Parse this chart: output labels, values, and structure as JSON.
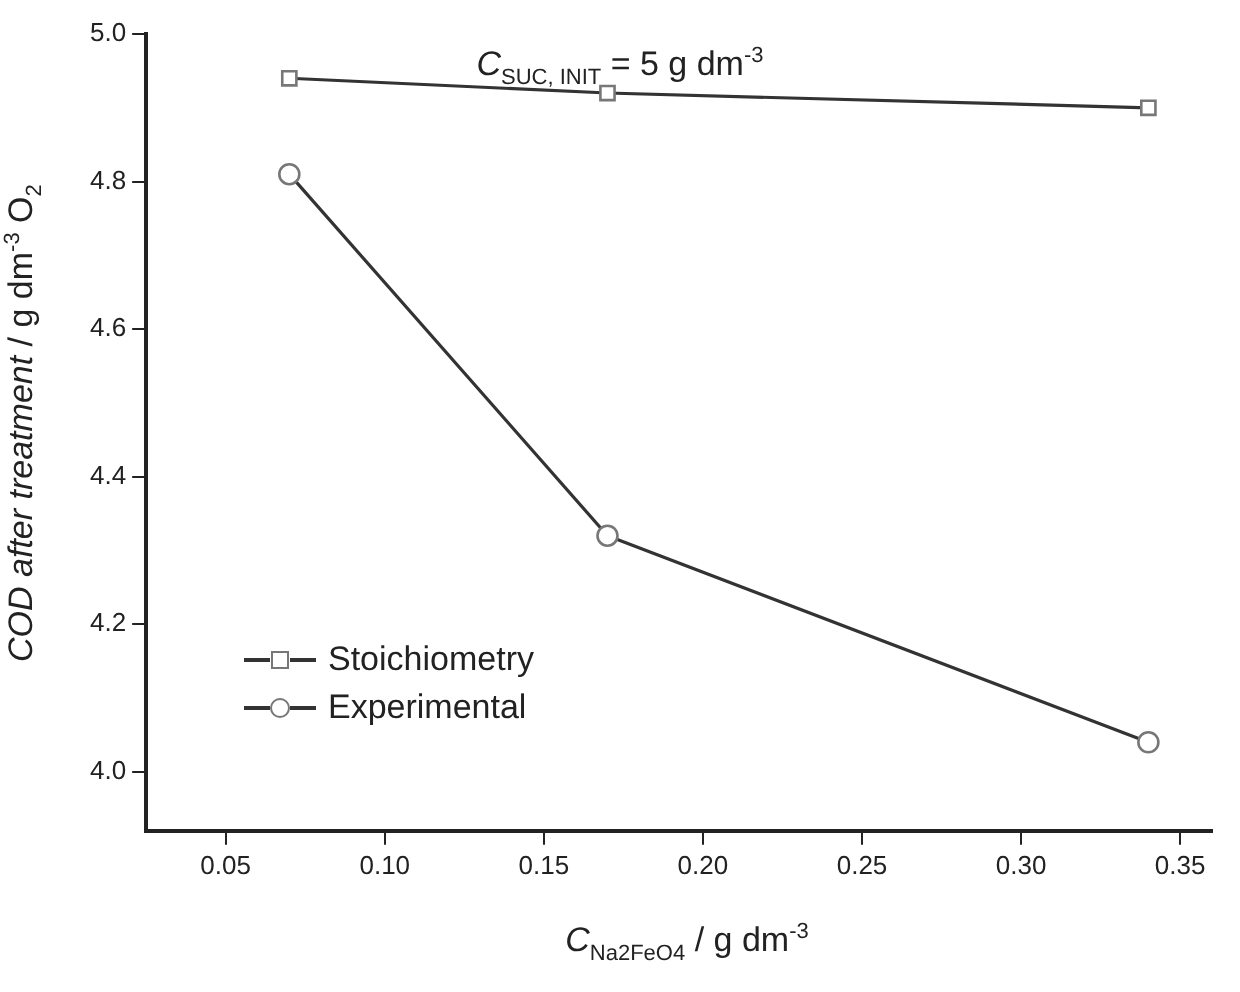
{
  "chart_data": {
    "type": "line",
    "annotations": [
      "C$_{SUC, INIT}$ = 5 g dm$^{-3}$"
    ],
    "xlabel": "C$_{Na2FeO4}$ / g dm$^{-3}$",
    "ylabel": "COD after treatment / g dm$^{-3}$ O$_{2}$",
    "x": [
      0.07,
      0.17,
      0.34
    ],
    "series": [
      {
        "name": "Stoichiometry",
        "color": "#333333",
        "marker": "square",
        "values": [
          4.94,
          4.92,
          4.9
        ]
      },
      {
        "name": "Experimental",
        "color": "#333333",
        "marker": "circle",
        "values": [
          4.81,
          4.32,
          4.04
        ]
      }
    ],
    "xlim": [
      0.025,
      0.36
    ],
    "xticks": [
      0.05,
      {
        "value": 0.1,
        "label": "0.10"
      },
      0.15,
      {
        "value": 0.2,
        "label": "0.20"
      },
      0.25,
      {
        "value": 0.3,
        "label": "0.30"
      },
      0.35
    ],
    "ylim": [
      3.92,
      5.0
    ],
    "yticks": [
      {
        "value": 4.0,
        "label": "4.0"
      },
      {
        "value": 4.2,
        "label": "4.2"
      },
      {
        "value": 4.4,
        "label": "4.4"
      },
      {
        "value": 4.6,
        "label": "4.6"
      },
      {
        "value": 4.8,
        "label": "4.8"
      },
      {
        "value": 5.0,
        "label": "5.0"
      }
    ],
    "grid": false,
    "legend": "bottom left",
    "line_style": "solid"
  }
}
